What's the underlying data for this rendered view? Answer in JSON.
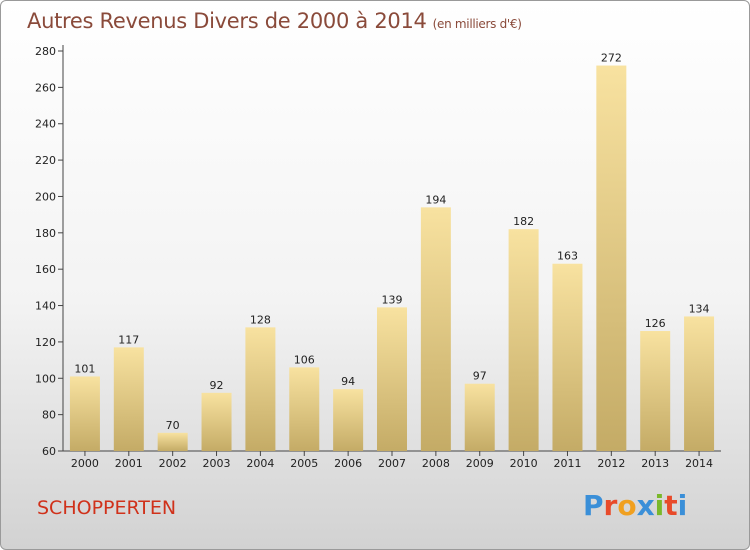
{
  "header": {
    "title": "Autres Revenus Divers de 2000 à 2014",
    "unit": "(en milliers d'€)"
  },
  "footer": {
    "commune": "SCHOPPERTEN",
    "logo_letters": [
      "P",
      "r",
      "o",
      "x",
      "i",
      "t",
      "i"
    ],
    "logo_colors": [
      "#3a8fd8",
      "#e84a2a",
      "#f0a020",
      "#3a8fd8",
      "#7ab82a",
      "#e84a2a",
      "#3a8fd8"
    ]
  },
  "colors": {
    "bar_top": "#f8e2a0",
    "bar_bottom": "#c4ab66",
    "axis": "#444444"
  },
  "chart_data": {
    "type": "bar",
    "title": "Autres Revenus Divers de 2000 à 2014",
    "xlabel": "",
    "ylabel": "",
    "ylim": [
      60,
      280
    ],
    "yticks": [
      60,
      80,
      100,
      120,
      140,
      160,
      180,
      200,
      220,
      240,
      260,
      280
    ],
    "grid": false,
    "categories": [
      "2000",
      "2001",
      "2002",
      "2003",
      "2004",
      "2005",
      "2006",
      "2007",
      "2008",
      "2009",
      "2010",
      "2011",
      "2012",
      "2013",
      "2014"
    ],
    "values": [
      101,
      117,
      70,
      92,
      128,
      106,
      94,
      139,
      194,
      97,
      182,
      163,
      272,
      126,
      134
    ]
  }
}
